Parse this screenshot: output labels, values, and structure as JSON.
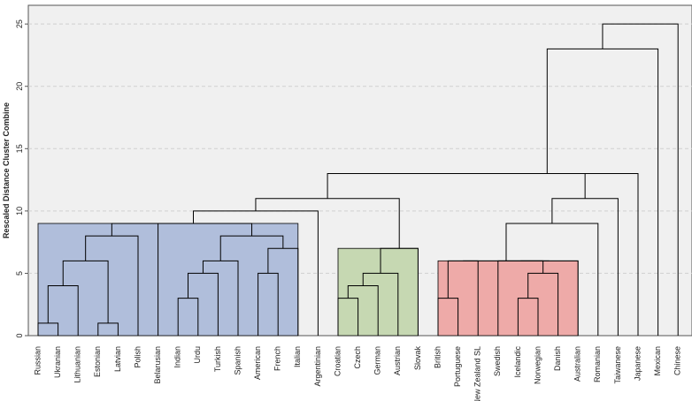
{
  "chart_data": {
    "type": "dendrogram",
    "ylabel": "Rescaled Distance Cluster Combine",
    "ylim": [
      0,
      26.5
    ],
    "yticks": [
      0,
      5,
      10,
      15,
      20,
      25
    ],
    "grid": true,
    "leaves": [
      "Russian",
      "Ukranian",
      "Lithuanian",
      "Estonian",
      "Latvian",
      "Polish",
      "Belarusian",
      "Indian",
      "Urdu",
      "Turkish",
      "Spanish",
      "American",
      "French",
      "Italian",
      "Argentinian",
      "Croatian",
      "Czech",
      "German",
      "Austrian",
      "Slovak",
      "British",
      "Portuguese",
      "New Zealand SL",
      "Swedish",
      "Icelandic",
      "Norwegian",
      "Danish",
      "Australian",
      "Romanian",
      "Taiwanese",
      "Japanese",
      "Mexican",
      "Chinese"
    ],
    "merges": [
      {
        "id": "m1",
        "left": "Russian",
        "right": "Ukranian",
        "height": 1
      },
      {
        "id": "m2",
        "left": "m1",
        "right": "Lithuanian",
        "height": 4
      },
      {
        "id": "m3",
        "left": "Estonian",
        "right": "Latvian",
        "height": 1
      },
      {
        "id": "m4",
        "left": "m2",
        "right": "m3",
        "height": 6
      },
      {
        "id": "m5",
        "left": "m4",
        "right": "Polish",
        "height": 8
      },
      {
        "id": "m6",
        "left": "m5",
        "right": "Belarusian",
        "height": 9
      },
      {
        "id": "m7",
        "left": "Indian",
        "right": "Urdu",
        "height": 3
      },
      {
        "id": "m8",
        "left": "m7",
        "right": "Turkish",
        "height": 5
      },
      {
        "id": "m9",
        "left": "m8",
        "right": "Spanish",
        "height": 6
      },
      {
        "id": "m10",
        "left": "American",
        "right": "French",
        "height": 5
      },
      {
        "id": "m11",
        "left": "m10",
        "right": "Italian",
        "height": 7
      },
      {
        "id": "m12",
        "left": "m9",
        "right": "m11",
        "height": 8
      },
      {
        "id": "m13",
        "left": "m6",
        "right": "m12",
        "height": 9
      },
      {
        "id": "m14",
        "left": "m13",
        "right": "Argentinian",
        "height": 10
      },
      {
        "id": "m15",
        "left": "Croatian",
        "right": "Czech",
        "height": 3
      },
      {
        "id": "m16",
        "left": "m15",
        "right": "German",
        "height": 4
      },
      {
        "id": "m17",
        "left": "m16",
        "right": "Austrian",
        "height": 5
      },
      {
        "id": "m18",
        "left": "m17",
        "right": "Slovak",
        "height": 7
      },
      {
        "id": "m19",
        "left": "m14",
        "right": "m18",
        "height": 11
      },
      {
        "id": "m20",
        "left": "British",
        "right": "Portuguese",
        "height": 3
      },
      {
        "id": "m21",
        "left": "m20",
        "right": "New Zealand SL",
        "height": 6
      },
      {
        "id": "m22",
        "left": "Icelandic",
        "right": "Norwegian",
        "height": 3
      },
      {
        "id": "m23",
        "left": "m22",
        "right": "Danish",
        "height": 5
      },
      {
        "id": "m24",
        "left": "Swedish",
        "right": "m23",
        "height": 6
      },
      {
        "id": "m25",
        "left": "m24",
        "right": "Australian",
        "height": 6
      },
      {
        "id": "m26",
        "left": "m21",
        "right": "m25",
        "height": 6
      },
      {
        "id": "m27",
        "left": "m26",
        "right": "Romanian",
        "height": 9
      },
      {
        "id": "m28",
        "left": "m27",
        "right": "Taiwanese",
        "height": 11
      },
      {
        "id": "m29",
        "left": "m19",
        "right": "m28",
        "height": 13
      },
      {
        "id": "m30",
        "left": "m29",
        "right": "Japanese",
        "height": 13
      },
      {
        "id": "m31",
        "left": "m30",
        "right": "Mexican",
        "height": 23
      },
      {
        "id": "m32",
        "left": "m31",
        "right": "Chinese",
        "height": 25
      }
    ],
    "clusters": [
      {
        "name": "blue",
        "leaves": [
          "Russian",
          "Ukranian",
          "Lithuanian",
          "Estonian",
          "Latvian",
          "Polish",
          "Belarusian",
          "Indian",
          "Urdu",
          "Turkish",
          "Spanish",
          "American",
          "French",
          "Italian"
        ],
        "height": 9,
        "color": "#b0bedb"
      },
      {
        "name": "green",
        "leaves": [
          "Croatian",
          "Czech",
          "German",
          "Austrian",
          "Slovak"
        ],
        "height": 7,
        "color": "#c6d8b2"
      },
      {
        "name": "red",
        "leaves": [
          "British",
          "Portuguese",
          "New Zealand SL",
          "Swedish",
          "Icelandic",
          "Norwegian",
          "Danish",
          "Australian"
        ],
        "height": 6,
        "color": "#eeaaa8"
      }
    ],
    "colors": {
      "plot_bg": "#f0f0f0",
      "grid": "#cfcfcf",
      "line": "#000000",
      "axis": "#555555"
    }
  }
}
